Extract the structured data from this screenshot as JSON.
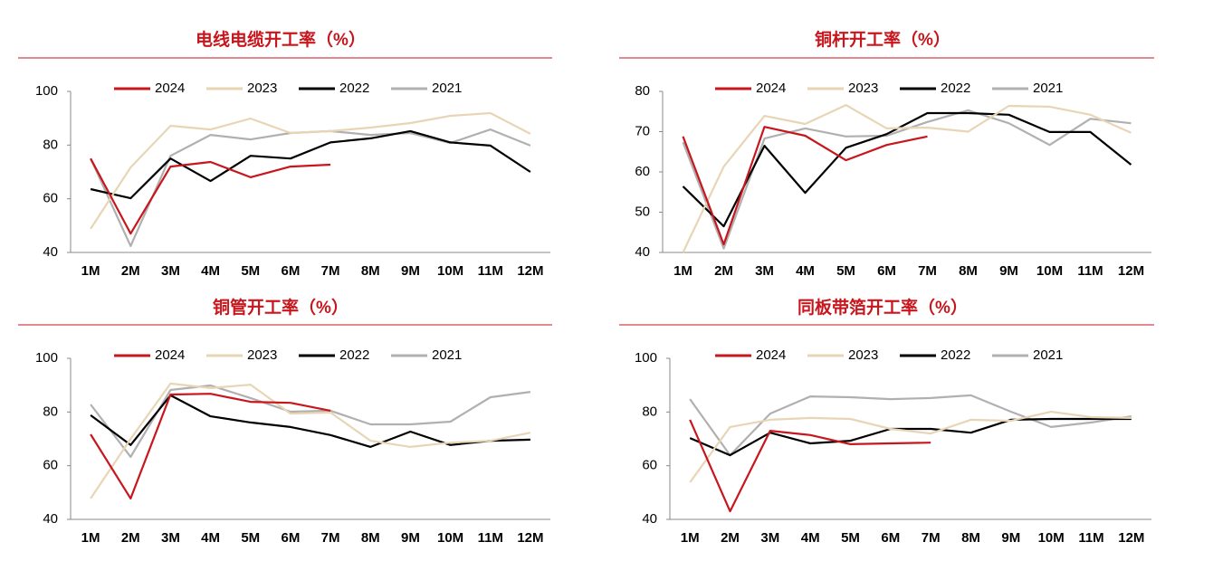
{
  "chart_data": [
    {
      "type": "line",
      "title": "电线电缆开工率（%）",
      "categories": [
        "1M",
        "2M",
        "3M",
        "4M",
        "5M",
        "6M",
        "7M",
        "8M",
        "9M",
        "10M",
        "11M",
        "12M"
      ],
      "ylim": [
        40,
        100
      ],
      "yticks": [
        40,
        60,
        80,
        100
      ],
      "grid": false,
      "series": [
        {
          "name": "2024",
          "color": "#c8161d",
          "values": [
            75,
            47,
            72,
            73.7,
            68,
            72,
            72.7,
            null,
            null,
            null,
            null,
            null
          ]
        },
        {
          "name": "2023",
          "color": "#e8d5b5",
          "values": [
            48.8,
            71.7,
            87.2,
            85.8,
            89.9,
            84.5,
            85.2,
            86.5,
            88.2,
            90.9,
            91.9,
            84.2
          ]
        },
        {
          "name": "2022",
          "color": "#000000",
          "values": [
            63.6,
            60.2,
            75,
            66.6,
            76,
            75,
            81,
            82.5,
            85.2,
            81,
            79.8,
            70
          ]
        },
        {
          "name": "2021",
          "color": "#b0b0b0",
          "values": [
            75,
            42.4,
            76,
            83.8,
            82.1,
            84.5,
            85.2,
            83.8,
            84.5,
            80.8,
            85.8,
            79.8
          ]
        }
      ]
    },
    {
      "type": "line",
      "title": "铜杆开工率（%）",
      "categories": [
        "1M",
        "2M",
        "3M",
        "4M",
        "5M",
        "6M",
        "7M",
        "8M",
        "9M",
        "10M",
        "11M",
        "12M"
      ],
      "ylim": [
        40,
        80
      ],
      "yticks": [
        40,
        50,
        60,
        70,
        80
      ],
      "grid": false,
      "series": [
        {
          "name": "2024",
          "color": "#c8161d",
          "values": [
            68.8,
            42,
            71.2,
            69,
            62.9,
            66.7,
            68.8,
            null,
            null,
            null,
            null,
            null
          ]
        },
        {
          "name": "2023",
          "color": "#e8d5b5",
          "values": [
            40,
            61.3,
            73.9,
            71.9,
            76.6,
            70.8,
            71,
            70,
            76.4,
            76.2,
            74.2,
            69.7
          ]
        },
        {
          "name": "2022",
          "color": "#000000",
          "values": [
            56.4,
            46.5,
            66.5,
            54.8,
            66,
            69.4,
            74.6,
            74.6,
            74.2,
            69.9,
            69.9,
            61.8
          ]
        },
        {
          "name": "2021",
          "color": "#b0b0b0",
          "values": [
            67.4,
            41,
            68.3,
            70.8,
            68.8,
            69,
            72.4,
            75.3,
            72.1,
            66.7,
            73.2,
            72.1
          ]
        }
      ]
    },
    {
      "type": "line",
      "title": "铜管开工率（%）",
      "categories": [
        "1M",
        "2M",
        "3M",
        "4M",
        "5M",
        "6M",
        "7M",
        "8M",
        "9M",
        "10M",
        "11M",
        "12M"
      ],
      "ylim": [
        40,
        100
      ],
      "yticks": [
        40,
        60,
        80,
        100
      ],
      "grid": false,
      "series": [
        {
          "name": "2024",
          "color": "#c8161d",
          "values": [
            71.7,
            47.8,
            86.5,
            86.8,
            83.8,
            83.4,
            80.5,
            null,
            null,
            null,
            null,
            null
          ]
        },
        {
          "name": "2023",
          "color": "#e8d5b5",
          "values": [
            47.8,
            70,
            90.6,
            88.9,
            90.2,
            79.4,
            79.8,
            69.3,
            67,
            68.6,
            69.3,
            72.3
          ]
        },
        {
          "name": "2022",
          "color": "#000000",
          "values": [
            78.8,
            67.7,
            86.2,
            78.4,
            76.1,
            74.4,
            71.4,
            67,
            72.7,
            67.7,
            69.3,
            69.7
          ]
        },
        {
          "name": "2021",
          "color": "#b0b0b0",
          "values": [
            82.8,
            63.3,
            88.2,
            89.9,
            85.2,
            80.1,
            80.5,
            75.4,
            75.4,
            76.4,
            85.5,
            87.5
          ]
        }
      ]
    },
    {
      "type": "line",
      "title": "同板带箔开工率（%）",
      "categories": [
        "1M",
        "2M",
        "3M",
        "4M",
        "5M",
        "6M",
        "7M",
        "8M",
        "9M",
        "10M",
        "11M",
        "12M"
      ],
      "ylim": [
        40,
        100
      ],
      "yticks": [
        40,
        60,
        80,
        100
      ],
      "grid": false,
      "series": [
        {
          "name": "2024",
          "color": "#c8161d",
          "values": [
            77.1,
            43,
            73,
            71.4,
            68,
            68.3,
            68.6,
            null,
            null,
            null,
            null,
            null
          ]
        },
        {
          "name": "2023",
          "color": "#e8d5b5",
          "values": [
            53.8,
            74.4,
            77.1,
            77.8,
            77.4,
            73.7,
            72,
            77.1,
            76.7,
            80.1,
            78.1,
            77.8
          ]
        },
        {
          "name": "2022",
          "color": "#000000",
          "values": [
            70.3,
            63.9,
            72.3,
            68.3,
            69.3,
            73.7,
            73.7,
            72.3,
            77.1,
            77.4,
            77.4,
            77.4
          ]
        },
        {
          "name": "2021",
          "color": "#b0b0b0",
          "values": [
            84.8,
            63.9,
            79.4,
            85.8,
            85.5,
            84.8,
            85.2,
            86.2,
            80.1,
            74.4,
            76.1,
            78.4
          ]
        }
      ]
    }
  ]
}
